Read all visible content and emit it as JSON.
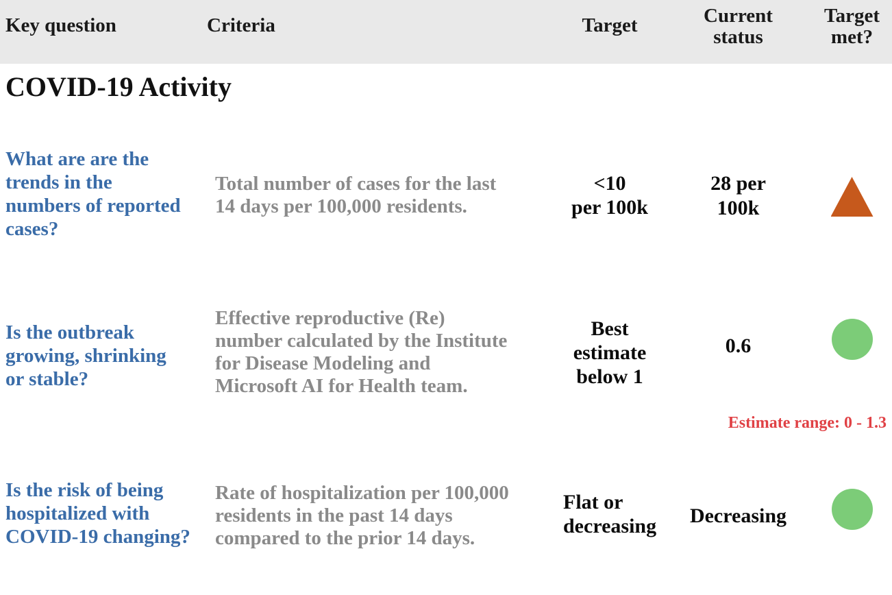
{
  "table": {
    "section_title": "COVID-19 Activity",
    "columns": [
      "Key question",
      "Criteria",
      "Target",
      "Current\nstatus",
      "Target\nmet?"
    ],
    "rows": [
      {
        "question": "What are are the\ntrends in the\nnumbers of reported\ncases?",
        "criteria": "Total number of cases for the last\n14 days per 100,000 residents.",
        "target": "<10\nper 100k",
        "current_status": "28 per\n100k",
        "indicator": {
          "shape": "triangle-up",
          "color": "#c6591c"
        }
      },
      {
        "question": "Is the outbreak\ngrowing, shrinking\nor stable?",
        "criteria": "Effective reproductive (Re)\nnumber calculated by the Institute\nfor Disease Modeling and\nMicrosoft AI for Health team.",
        "target": "Best\nestimate\nbelow 1",
        "current_status": "0.6",
        "indicator": {
          "shape": "circle",
          "color": "#7ccc78"
        },
        "note": "Estimate range: 0 - 1.3"
      },
      {
        "question": "Is the risk of being\nhospitalized with\nCOVID-19 changing?",
        "criteria": "Rate of hospitalization per 100,000\nresidents in the past 14 days\ncompared to the prior 14 days.",
        "target": "Flat or\ndecreasing",
        "current_status": "Decreasing",
        "indicator": {
          "shape": "circle",
          "color": "#7ccc78"
        }
      }
    ]
  },
  "colors": {
    "header_bg": "#e9e9e9",
    "question_text": "#3a6ca8",
    "criteria_text": "#8a8a8a",
    "body_text": "#0c0c0c",
    "note_text": "#e04145",
    "not_met_indicator": "#c6591c",
    "met_indicator": "#7ccc78"
  }
}
